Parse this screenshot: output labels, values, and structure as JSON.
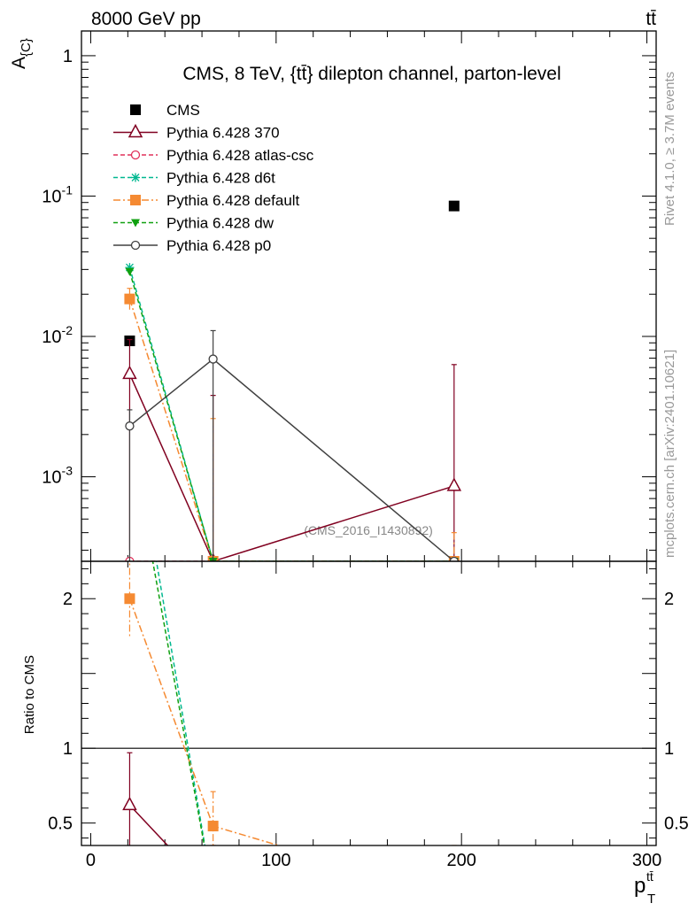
{
  "header": {
    "left": "8000 GeV pp",
    "right": "tt̄"
  },
  "side_labels": {
    "rivet": "Rivet 4.1.0, ≥ 3.7M events",
    "mcplots": "mcplots.cern.ch [arXiv:2401.10621]"
  },
  "chart_data": [
    {
      "type": "scatter",
      "panel": "main",
      "title": "CMS, 8 TeV, {tt̄} dilepton channel, parton-level",
      "ylabel": "A_{C}",
      "watermark": "(CMS_2016_I1430892)",
      "yscale": "log",
      "xlim": [
        -5,
        305
      ],
      "ylim": [
        0.00025,
        1.5
      ],
      "x_ticks": [
        0,
        100,
        200,
        300
      ],
      "y_ticks": [
        {
          "value": 1,
          "label": "1"
        },
        {
          "value": 0.1,
          "label": "10^-1"
        },
        {
          "value": 0.01,
          "label": "10^-2"
        },
        {
          "value": 0.001,
          "label": "10^-3"
        }
      ],
      "legend_placement": "top-left",
      "series": [
        {
          "name": "CMS",
          "color": "#000000",
          "marker": "square",
          "line": "none",
          "x": [
            21,
            66,
            196
          ],
          "y": [
            0.0093,
            null,
            0.085
          ]
        },
        {
          "name": "Pythia 6.428 370",
          "color": "#800020",
          "marker": "triangle-open",
          "line": "solid",
          "x": [
            21,
            66,
            196
          ],
          "y": [
            0.0054,
            0.00025,
            0.00086
          ],
          "err_up": [
            0.0095,
            0.0038,
            0.0063
          ],
          "err_down": [
            0.0003,
            0.00025,
            0.00025
          ]
        },
        {
          "name": "Pythia 6.428 atlas-csc",
          "color": "#e0305a",
          "marker": "circle-open",
          "line": "dashed",
          "x": [
            21,
            66,
            196
          ],
          "y": [
            0.00025,
            0.00025,
            0.00025
          ]
        },
        {
          "name": "Pythia 6.428 d6t",
          "color": "#00b890",
          "marker": "asterisk",
          "line": "dashed",
          "x": [
            21,
            66,
            196
          ],
          "y": [
            0.031,
            0.00025,
            0.00025
          ]
        },
        {
          "name": "Pythia 6.428 default",
          "color": "#f58a32",
          "marker": "square",
          "line": "dashdot",
          "x": [
            21,
            66,
            196
          ],
          "y": [
            0.0185,
            0.00025,
            0.00025
          ],
          "err_up": [
            0.022,
            0.0026,
            0.0004
          ],
          "err_down": [
            0.0155,
            0.00025,
            0.00025
          ]
        },
        {
          "name": "Pythia 6.428 dw",
          "color": "#10a010",
          "marker": "triangle-down",
          "line": "dashed",
          "x": [
            21,
            66,
            196
          ],
          "y": [
            0.029,
            0.00025,
            0.00025
          ]
        },
        {
          "name": "Pythia 6.428 p0",
          "color": "#404040",
          "marker": "circle-open",
          "line": "solid",
          "x": [
            21,
            66,
            196
          ],
          "y": [
            0.0023,
            0.0069,
            0.00025
          ],
          "err_up": [
            0.003,
            0.011,
            0.00025
          ],
          "err_down": [
            0.00025,
            0.00025,
            0.00025
          ]
        }
      ]
    },
    {
      "type": "line",
      "panel": "ratio",
      "ylabel": "Ratio to CMS",
      "xlabel": "p_T^{tt̄}",
      "xlim": [
        -5,
        305
      ],
      "ylim": [
        0.35,
        2.25
      ],
      "x_ticks": [
        0,
        100,
        200,
        300
      ],
      "y_ticks": [
        {
          "value": 0.5,
          "label": "0.5"
        },
        {
          "value": 1,
          "label": "1"
        },
        {
          "value": 2,
          "label": "2"
        }
      ],
      "reference": 1,
      "series": [
        {
          "name": "Pythia 6.428 370",
          "color": "#800020",
          "marker": "triangle-open",
          "line": "solid",
          "x": [
            21,
            66
          ],
          "y": [
            0.62,
            0.027
          ],
          "err_up": [
            0.97,
            0.35
          ],
          "err_down": [
            0.35,
            0.35
          ]
        },
        {
          "name": "Pythia 6.428 d6t",
          "color": "#00b890",
          "marker": "none",
          "line": "dashed",
          "x": [
            21,
            66
          ],
          "y": [
            3.3,
            0.027
          ]
        },
        {
          "name": "Pythia 6.428 default",
          "color": "#f58a32",
          "marker": "square",
          "line": "dashdot",
          "x": [
            21,
            66,
            196
          ],
          "y": [
            2.0,
            0.48,
            0.003
          ],
          "err_up": [
            2.3,
            0.71,
            0.35
          ],
          "err_down": [
            1.75,
            0.35,
            0.35
          ]
        },
        {
          "name": "Pythia 6.428 dw",
          "color": "#10a010",
          "marker": "none",
          "line": "dashed",
          "x": [
            21,
            66
          ],
          "y": [
            3.1,
            0.027
          ]
        }
      ]
    }
  ]
}
